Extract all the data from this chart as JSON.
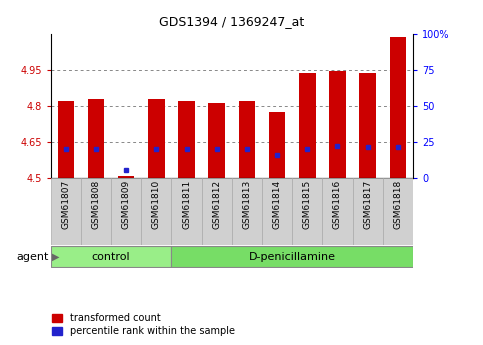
{
  "title": "GDS1394 / 1369247_at",
  "samples": [
    "GSM61807",
    "GSM61808",
    "GSM61809",
    "GSM61810",
    "GSM61811",
    "GSM61812",
    "GSM61813",
    "GSM61814",
    "GSM61815",
    "GSM61816",
    "GSM61817",
    "GSM61818"
  ],
  "red_values": [
    4.82,
    4.83,
    4.505,
    4.83,
    4.82,
    4.815,
    4.82,
    4.775,
    4.94,
    4.945,
    4.94,
    5.09
  ],
  "blue_pct": [
    20,
    20,
    5.5,
    20,
    20,
    20,
    20,
    16,
    20,
    22,
    21.5,
    21.5
  ],
  "ymin": 4.5,
  "ymax": 5.1,
  "yticks": [
    4.5,
    4.65,
    4.8,
    4.95
  ],
  "ytick_labels": [
    "4.5",
    "4.65",
    "4.8",
    "4.95"
  ],
  "right_yticks_pct": [
    0,
    25,
    50,
    75,
    100
  ],
  "right_ytick_labels": [
    "0",
    "25",
    "50",
    "75",
    "100%"
  ],
  "bar_width": 0.55,
  "red_color": "#cc0000",
  "blue_color": "#2222cc",
  "control_color": "#99ee88",
  "dpen_color": "#77dd66",
  "n_control": 4,
  "agent_label": "agent",
  "control_label": "control",
  "dpen_label": "D-penicillamine",
  "legend_red": "transformed count",
  "legend_blue": "percentile rank within the sample",
  "bg_color": "#ffffff",
  "plot_bg": "#ffffff",
  "grid_color": "#888888",
  "tick_bg_color": "#d0d0d0",
  "tick_border_color": "#aaaaaa"
}
